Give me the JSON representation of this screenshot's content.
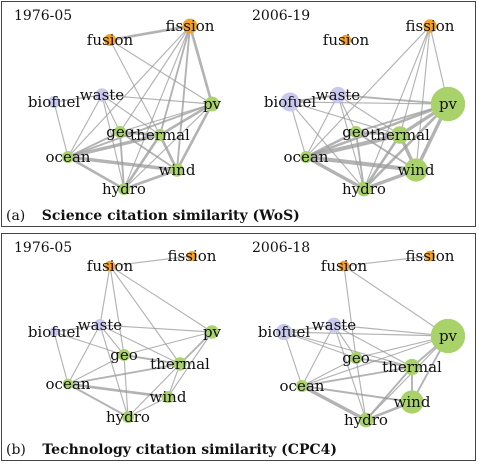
{
  "colors": {
    "nuclear": "#f2a12a",
    "other": "#c9c9f0",
    "renewable": "#a9d36a",
    "edge": "#9a9a9a"
  },
  "panels": [
    {
      "tag": "(a)",
      "title": "Science citation similarity (WoS)",
      "networks": [
        {
          "period": "1976-05",
          "nodes": [
            {
              "id": "fusion",
              "label": "fusion",
              "group": "nuclear",
              "size": 1
            },
            {
              "id": "fission",
              "label": "fission",
              "group": "nuclear",
              "size": 1.2
            },
            {
              "id": "biofuel",
              "label": "biofuel",
              "group": "other",
              "size": 1
            },
            {
              "id": "waste",
              "label": "waste",
              "group": "other",
              "size": 1.1
            },
            {
              "id": "pv",
              "label": "pv",
              "group": "renewable",
              "size": 1.2
            },
            {
              "id": "geo",
              "label": "geo",
              "group": "renewable",
              "size": 1
            },
            {
              "id": "thermal",
              "label": "thermal",
              "group": "renewable",
              "size": 1
            },
            {
              "id": "ocean",
              "label": "ocean",
              "group": "renewable",
              "size": 1
            },
            {
              "id": "wind",
              "label": "wind",
              "group": "renewable",
              "size": 1.1
            },
            {
              "id": "hydro",
              "label": "hydro",
              "group": "renewable",
              "size": 1
            }
          ],
          "edges": [
            [
              "fusion",
              "fission",
              3
            ],
            [
              "fission",
              "pv",
              3
            ],
            [
              "fission",
              "thermal",
              2
            ],
            [
              "fission",
              "geo",
              1
            ],
            [
              "fission",
              "ocean",
              1
            ],
            [
              "fission",
              "hydro",
              1
            ],
            [
              "fission",
              "wind",
              2
            ],
            [
              "fusion",
              "thermal",
              1
            ],
            [
              "fusion",
              "pv",
              1
            ],
            [
              "biofuel",
              "waste",
              1
            ],
            [
              "biofuel",
              "ocean",
              1
            ],
            [
              "waste",
              "pv",
              1
            ],
            [
              "waste",
              "thermal",
              1
            ],
            [
              "waste",
              "geo",
              1
            ],
            [
              "waste",
              "ocean",
              1
            ],
            [
              "waste",
              "hydro",
              1
            ],
            [
              "pv",
              "thermal",
              3
            ],
            [
              "pv",
              "wind",
              3
            ],
            [
              "pv",
              "geo",
              1
            ],
            [
              "pv",
              "ocean",
              2
            ],
            [
              "pv",
              "hydro",
              1
            ],
            [
              "geo",
              "thermal",
              3
            ],
            [
              "geo",
              "ocean",
              2
            ],
            [
              "geo",
              "hydro",
              2
            ],
            [
              "geo",
              "wind",
              2
            ],
            [
              "thermal",
              "ocean",
              4
            ],
            [
              "thermal",
              "wind",
              3
            ],
            [
              "thermal",
              "hydro",
              3
            ],
            [
              "ocean",
              "wind",
              4
            ],
            [
              "ocean",
              "hydro",
              3
            ],
            [
              "hydro",
              "wind",
              3
            ]
          ]
        },
        {
          "period": "2006-19",
          "nodes": [
            {
              "id": "fusion",
              "label": "fusion",
              "group": "nuclear",
              "size": 0.9
            },
            {
              "id": "fission",
              "label": "fission",
              "group": "nuclear",
              "size": 1.1
            },
            {
              "id": "biofuel",
              "label": "biofuel",
              "group": "other",
              "size": 1.5
            },
            {
              "id": "waste",
              "label": "waste",
              "group": "other",
              "size": 1.3
            },
            {
              "id": "pv",
              "label": "pv",
              "group": "renewable",
              "size": 2.6
            },
            {
              "id": "geo",
              "label": "geo",
              "group": "renewable",
              "size": 1
            },
            {
              "id": "thermal",
              "label": "thermal",
              "group": "renewable",
              "size": 1.4
            },
            {
              "id": "ocean",
              "label": "ocean",
              "group": "renewable",
              "size": 1
            },
            {
              "id": "wind",
              "label": "wind",
              "group": "renewable",
              "size": 1.8
            },
            {
              "id": "hydro",
              "label": "hydro",
              "group": "renewable",
              "size": 1.2
            }
          ],
          "edges": [
            [
              "fission",
              "pv",
              1
            ],
            [
              "fission",
              "thermal",
              1
            ],
            [
              "fission",
              "wind",
              1
            ],
            [
              "fission",
              "ocean",
              1
            ],
            [
              "fission",
              "hydro",
              1
            ],
            [
              "biofuel",
              "waste",
              2
            ],
            [
              "biofuel",
              "pv",
              1
            ],
            [
              "biofuel",
              "ocean",
              1
            ],
            [
              "biofuel",
              "thermal",
              1
            ],
            [
              "biofuel",
              "hydro",
              1
            ],
            [
              "waste",
              "pv",
              2
            ],
            [
              "waste",
              "geo",
              1
            ],
            [
              "waste",
              "ocean",
              1
            ],
            [
              "waste",
              "hydro",
              1
            ],
            [
              "waste",
              "thermal",
              1
            ],
            [
              "pv",
              "thermal",
              4
            ],
            [
              "pv",
              "wind",
              4
            ],
            [
              "pv",
              "ocean",
              3
            ],
            [
              "pv",
              "hydro",
              3
            ],
            [
              "pv",
              "geo",
              2
            ],
            [
              "geo",
              "thermal",
              3
            ],
            [
              "geo",
              "ocean",
              3
            ],
            [
              "geo",
              "hydro",
              2
            ],
            [
              "geo",
              "wind",
              2
            ],
            [
              "thermal",
              "ocean",
              5
            ],
            [
              "thermal",
              "wind",
              4
            ],
            [
              "thermal",
              "hydro",
              3
            ],
            [
              "ocean",
              "wind",
              5
            ],
            [
              "ocean",
              "hydro",
              4
            ],
            [
              "hydro",
              "wind",
              4
            ]
          ]
        }
      ]
    },
    {
      "tag": "(b)",
      "title": "Technology citation similarity (CPC4)",
      "networks": [
        {
          "period": "1976-05",
          "nodes": [
            {
              "id": "fusion",
              "label": "fusion",
              "group": "nuclear",
              "size": 0.9
            },
            {
              "id": "fission",
              "label": "fission",
              "group": "nuclear",
              "size": 0.8
            },
            {
              "id": "biofuel",
              "label": "biofuel",
              "group": "other",
              "size": 0.8
            },
            {
              "id": "waste",
              "label": "waste",
              "group": "other",
              "size": 1
            },
            {
              "id": "pv",
              "label": "pv",
              "group": "renewable",
              "size": 1.1
            },
            {
              "id": "geo",
              "label": "geo",
              "group": "renewable",
              "size": 1
            },
            {
              "id": "thermal",
              "label": "thermal",
              "group": "renewable",
              "size": 1.1
            },
            {
              "id": "ocean",
              "label": "ocean",
              "group": "renewable",
              "size": 0.9
            },
            {
              "id": "wind",
              "label": "wind",
              "group": "renewable",
              "size": 1
            },
            {
              "id": "hydro",
              "label": "hydro",
              "group": "renewable",
              "size": 1
            }
          ],
          "edges": [
            [
              "fusion",
              "fission",
              1
            ],
            [
              "fusion",
              "pv",
              1
            ],
            [
              "fusion",
              "waste",
              1
            ],
            [
              "fusion",
              "geo",
              1
            ],
            [
              "fusion",
              "thermal",
              1
            ],
            [
              "biofuel",
              "waste",
              1
            ],
            [
              "biofuel",
              "ocean",
              1
            ],
            [
              "biofuel",
              "geo",
              1
            ],
            [
              "waste",
              "pv",
              1
            ],
            [
              "waste",
              "geo",
              1
            ],
            [
              "waste",
              "thermal",
              1
            ],
            [
              "waste",
              "ocean",
              1
            ],
            [
              "waste",
              "hydro",
              1
            ],
            [
              "pv",
              "thermal",
              2
            ],
            [
              "pv",
              "wind",
              1
            ],
            [
              "pv",
              "geo",
              1
            ],
            [
              "geo",
              "thermal",
              2
            ],
            [
              "geo",
              "ocean",
              1
            ],
            [
              "geo",
              "hydro",
              1
            ],
            [
              "thermal",
              "ocean",
              2
            ],
            [
              "thermal",
              "wind",
              1
            ],
            [
              "thermal",
              "hydro",
              1
            ],
            [
              "ocean",
              "wind",
              3
            ],
            [
              "ocean",
              "hydro",
              2
            ],
            [
              "hydro",
              "wind",
              1
            ]
          ]
        },
        {
          "period": "2006-18",
          "nodes": [
            {
              "id": "fusion",
              "label": "fusion",
              "group": "nuclear",
              "size": 0.9
            },
            {
              "id": "fission",
              "label": "fission",
              "group": "nuclear",
              "size": 0.9
            },
            {
              "id": "biofuel",
              "label": "biofuel",
              "group": "other",
              "size": 1.3
            },
            {
              "id": "waste",
              "label": "waste",
              "group": "other",
              "size": 1.2
            },
            {
              "id": "pv",
              "label": "pv",
              "group": "renewable",
              "size": 2.6
            },
            {
              "id": "geo",
              "label": "geo",
              "group": "renewable",
              "size": 1
            },
            {
              "id": "thermal",
              "label": "thermal",
              "group": "renewable",
              "size": 1.3
            },
            {
              "id": "ocean",
              "label": "ocean",
              "group": "renewable",
              "size": 1
            },
            {
              "id": "wind",
              "label": "wind",
              "group": "renewable",
              "size": 1.8
            },
            {
              "id": "hydro",
              "label": "hydro",
              "group": "renewable",
              "size": 1.2
            }
          ],
          "edges": [
            [
              "fusion",
              "fission",
              1
            ],
            [
              "fusion",
              "pv",
              1
            ],
            [
              "fusion",
              "geo",
              1
            ],
            [
              "biofuel",
              "waste",
              1
            ],
            [
              "biofuel",
              "pv",
              1
            ],
            [
              "biofuel",
              "ocean",
              1
            ],
            [
              "biofuel",
              "thermal",
              1
            ],
            [
              "biofuel",
              "geo",
              1
            ],
            [
              "waste",
              "pv",
              1
            ],
            [
              "waste",
              "geo",
              1
            ],
            [
              "waste",
              "ocean",
              1
            ],
            [
              "waste",
              "hydro",
              1
            ],
            [
              "waste",
              "thermal",
              1
            ],
            [
              "pv",
              "thermal",
              2
            ],
            [
              "pv",
              "wind",
              2
            ],
            [
              "pv",
              "ocean",
              1
            ],
            [
              "pv",
              "hydro",
              1
            ],
            [
              "pv",
              "geo",
              1
            ],
            [
              "geo",
              "thermal",
              2
            ],
            [
              "geo",
              "ocean",
              1
            ],
            [
              "geo",
              "hydro",
              1
            ],
            [
              "thermal",
              "ocean",
              2
            ],
            [
              "thermal",
              "wind",
              2
            ],
            [
              "thermal",
              "hydro",
              2
            ],
            [
              "ocean",
              "wind",
              2
            ],
            [
              "ocean",
              "hydro",
              4
            ],
            [
              "hydro",
              "wind",
              3
            ]
          ]
        }
      ]
    }
  ]
}
